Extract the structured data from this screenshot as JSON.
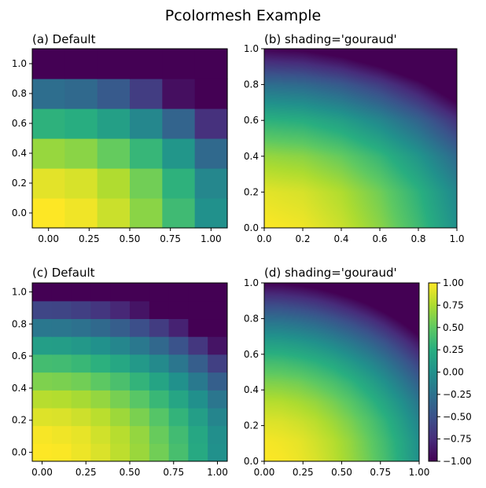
{
  "figure": {
    "title": "Pcolormesh Example"
  },
  "colorbar": {
    "min": -1.0,
    "max": 1.0,
    "ticks": [
      1.0,
      0.75,
      0.5,
      0.25,
      0.0,
      -0.25,
      -0.5,
      -0.75,
      -1.0
    ],
    "tick_labels": [
      "1.00",
      "0.75",
      "0.50",
      "0.25",
      "0.00",
      "−0.25",
      "−0.50",
      "−0.75",
      "−1.00"
    ],
    "colormap": "viridis",
    "colormap_stops": [
      "#440154",
      "#472d7b",
      "#3b528b",
      "#2c728e",
      "#21918c",
      "#28ae80",
      "#5ec962",
      "#addc30",
      "#fde725"
    ]
  },
  "chart_data": [
    {
      "type": "heatmap",
      "title": "(a) Default",
      "shading": "flat",
      "colormap": "viridis",
      "x_centers": [
        0.0,
        0.2,
        0.4,
        0.6,
        0.8,
        1.0
      ],
      "y_centers": [
        0.0,
        0.2,
        0.4,
        0.6,
        0.8,
        1.0
      ],
      "xlim": [
        -0.1,
        1.1
      ],
      "ylim": [
        -0.1,
        1.1
      ],
      "xticks": [
        0.0,
        0.25,
        0.5,
        0.75,
        1.0
      ],
      "xtick_labels": [
        "0.00",
        "0.25",
        "0.50",
        "0.75",
        "1.00"
      ],
      "yticks": [
        0.0,
        0.2,
        0.4,
        0.6,
        0.8,
        1.0
      ],
      "ytick_labels": [
        "0.0",
        "0.2",
        "0.4",
        "0.6",
        "0.8",
        "1.0"
      ],
      "clim": [
        -1.0,
        1.0
      ],
      "values": [
        [
          1.0,
          0.96,
          0.84,
          0.64,
          0.36,
          0.0
        ],
        [
          0.92,
          0.88,
          0.76,
          0.56,
          0.28,
          -0.08
        ],
        [
          0.68,
          0.64,
          0.52,
          0.32,
          0.04,
          -0.32
        ],
        [
          0.28,
          0.24,
          0.12,
          -0.08,
          -0.36,
          -0.72
        ],
        [
          -0.28,
          -0.32,
          -0.44,
          -0.64,
          -0.92,
          -1.28
        ],
        [
          -1.0,
          -1.04,
          -1.16,
          -1.36,
          -1.64,
          -2.0
        ]
      ]
    },
    {
      "type": "heatmap",
      "title": "(b) shading='gouraud'",
      "shading": "gouraud",
      "colormap": "viridis",
      "x_centers": [
        0.0,
        0.2,
        0.4,
        0.6,
        0.8,
        1.0
      ],
      "y_centers": [
        0.0,
        0.2,
        0.4,
        0.6,
        0.8,
        1.0
      ],
      "xlim": [
        0.0,
        1.0
      ],
      "ylim": [
        0.0,
        1.0
      ],
      "xticks": [
        0.0,
        0.2,
        0.4,
        0.6,
        0.8,
        1.0
      ],
      "xtick_labels": [
        "0.0",
        "0.2",
        "0.4",
        "0.6",
        "0.8",
        "1.0"
      ],
      "yticks": [
        0.0,
        0.2,
        0.4,
        0.6,
        0.8,
        1.0
      ],
      "ytick_labels": [
        "0.0",
        "0.2",
        "0.4",
        "0.6",
        "0.8",
        "1.0"
      ],
      "clim": [
        -1.0,
        1.0
      ],
      "values": [
        [
          1.0,
          0.96,
          0.84,
          0.64,
          0.36,
          0.0
        ],
        [
          0.92,
          0.88,
          0.76,
          0.56,
          0.28,
          -0.08
        ],
        [
          0.68,
          0.64,
          0.52,
          0.32,
          0.04,
          -0.32
        ],
        [
          0.28,
          0.24,
          0.12,
          -0.08,
          -0.36,
          -0.72
        ],
        [
          -0.28,
          -0.32,
          -0.44,
          -0.64,
          -0.92,
          -1.28
        ],
        [
          -1.0,
          -1.04,
          -1.16,
          -1.36,
          -1.64,
          -2.0
        ]
      ]
    },
    {
      "type": "heatmap",
      "title": "(c) Default",
      "shading": "flat",
      "colormap": "viridis",
      "x_centers": [
        0.0,
        0.111,
        0.222,
        0.333,
        0.444,
        0.556,
        0.667,
        0.778,
        0.889,
        1.0
      ],
      "y_centers": [
        0.0,
        0.111,
        0.222,
        0.333,
        0.444,
        0.556,
        0.667,
        0.778,
        0.889,
        1.0
      ],
      "xlim": [
        -0.056,
        1.056
      ],
      "ylim": [
        -0.056,
        1.056
      ],
      "xticks": [
        0.0,
        0.25,
        0.5,
        0.75,
        1.0
      ],
      "xtick_labels": [
        "0.00",
        "0.25",
        "0.50",
        "0.75",
        "1.00"
      ],
      "yticks": [
        0.0,
        0.2,
        0.4,
        0.6,
        0.8,
        1.0
      ],
      "ytick_labels": [
        "0.0",
        "0.2",
        "0.4",
        "0.6",
        "0.8",
        "1.0"
      ],
      "clim": [
        -1.0,
        1.0
      ],
      "values": [
        [
          1.0,
          0.99,
          0.95,
          0.89,
          0.8,
          0.69,
          0.56,
          0.4,
          0.21,
          0.0
        ],
        [
          0.98,
          0.96,
          0.93,
          0.86,
          0.78,
          0.67,
          0.53,
          0.37,
          0.19,
          -0.02
        ],
        [
          0.9,
          0.89,
          0.85,
          0.79,
          0.7,
          0.59,
          0.46,
          0.3,
          0.11,
          -0.1
        ],
        [
          0.78,
          0.77,
          0.73,
          0.67,
          0.58,
          0.47,
          0.33,
          0.17,
          -0.01,
          -0.22
        ],
        [
          0.6,
          0.59,
          0.56,
          0.49,
          0.41,
          0.3,
          0.16,
          0.0,
          -0.19,
          -0.4
        ],
        [
          0.38,
          0.37,
          0.33,
          0.27,
          0.19,
          0.07,
          -0.06,
          -0.22,
          -0.41,
          -0.62
        ],
        [
          0.11,
          0.1,
          0.06,
          0.0,
          -0.09,
          -0.2,
          -0.33,
          -0.49,
          -0.68,
          -0.89
        ],
        [
          -0.21,
          -0.22,
          -0.26,
          -0.32,
          -0.41,
          -0.52,
          -0.65,
          -0.81,
          -1.0,
          -1.21
        ],
        [
          -0.58,
          -0.59,
          -0.63,
          -0.69,
          -0.78,
          -0.89,
          -1.02,
          -1.18,
          -1.37,
          -1.58
        ],
        [
          -1.0,
          -1.01,
          -1.05,
          -1.11,
          -1.2,
          -1.31,
          -1.44,
          -1.6,
          -1.79,
          -2.0
        ]
      ]
    },
    {
      "type": "heatmap",
      "title": "(d) shading='gouraud'",
      "shading": "gouraud",
      "colormap": "viridis",
      "x_centers": [
        0.0,
        0.111,
        0.222,
        0.333,
        0.444,
        0.556,
        0.667,
        0.778,
        0.889,
        1.0
      ],
      "y_centers": [
        0.0,
        0.111,
        0.222,
        0.333,
        0.444,
        0.556,
        0.667,
        0.778,
        0.889,
        1.0
      ],
      "xlim": [
        0.0,
        1.0
      ],
      "ylim": [
        0.0,
        1.0
      ],
      "xticks": [
        0.0,
        0.25,
        0.5,
        0.75,
        1.0
      ],
      "xtick_labels": [
        "0.00",
        "0.25",
        "0.50",
        "0.75",
        "1.00"
      ],
      "yticks": [
        0.0,
        0.2,
        0.4,
        0.6,
        0.8,
        1.0
      ],
      "ytick_labels": [
        "0.0",
        "0.2",
        "0.4",
        "0.6",
        "0.8",
        "1.0"
      ],
      "clim": [
        -1.0,
        1.0
      ],
      "values": [
        [
          1.0,
          0.99,
          0.95,
          0.89,
          0.8,
          0.69,
          0.56,
          0.4,
          0.21,
          0.0
        ],
        [
          0.98,
          0.96,
          0.93,
          0.86,
          0.78,
          0.67,
          0.53,
          0.37,
          0.19,
          -0.02
        ],
        [
          0.9,
          0.89,
          0.85,
          0.79,
          0.7,
          0.59,
          0.46,
          0.3,
          0.11,
          -0.1
        ],
        [
          0.78,
          0.77,
          0.73,
          0.67,
          0.58,
          0.47,
          0.33,
          0.17,
          -0.01,
          -0.22
        ],
        [
          0.6,
          0.59,
          0.56,
          0.49,
          0.41,
          0.3,
          0.16,
          0.0,
          -0.19,
          -0.4
        ],
        [
          0.38,
          0.37,
          0.33,
          0.27,
          0.19,
          0.07,
          -0.06,
          -0.22,
          -0.41,
          -0.62
        ],
        [
          0.11,
          0.1,
          0.06,
          0.0,
          -0.09,
          -0.2,
          -0.33,
          -0.49,
          -0.68,
          -0.89
        ],
        [
          -0.21,
          -0.22,
          -0.26,
          -0.32,
          -0.41,
          -0.52,
          -0.65,
          -0.81,
          -1.0,
          -1.21
        ],
        [
          -0.58,
          -0.59,
          -0.63,
          -0.69,
          -0.78,
          -0.89,
          -1.02,
          -1.18,
          -1.37,
          -1.58
        ],
        [
          -1.0,
          -1.01,
          -1.05,
          -1.11,
          -1.2,
          -1.31,
          -1.44,
          -1.6,
          -1.79,
          -2.0
        ]
      ]
    }
  ]
}
